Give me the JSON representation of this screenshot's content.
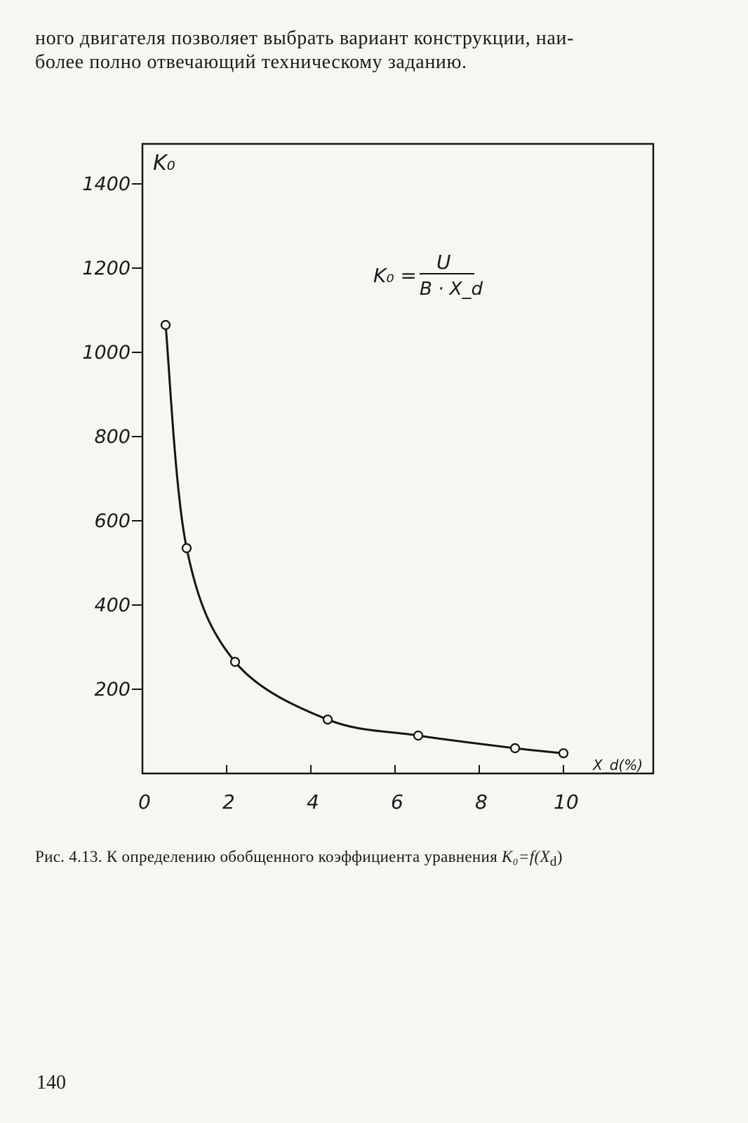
{
  "page": {
    "intro_line1": "ного двигателя позволяет выбрать вариант конструкции, наи-",
    "intro_line2": "более полно отвечающий техническому заданию.",
    "caption_prefix": "Рис. 4.13. К определению обобщенного коэффициента уравнения ",
    "caption_formula": "K₀=f(X",
    "caption_formula_sub": "d",
    "caption_formula_end": ")",
    "page_number": "140"
  },
  "chart_data": {
    "type": "line",
    "title": "",
    "ylabel": "K₀",
    "xlabel": "X_d(%)",
    "formula": {
      "lhs": "K₀ =",
      "numerator": "U",
      "denominator": "B · X_d"
    },
    "xlim": [
      0,
      12
    ],
    "ylim": [
      0,
      1500
    ],
    "x_ticks": [
      "0",
      "2",
      "4",
      "6",
      "8",
      "10"
    ],
    "x_tick_values": [
      0,
      2,
      4,
      6,
      8,
      10
    ],
    "y_ticks": [
      "200",
      "400",
      "600",
      "800",
      "1000",
      "1200",
      "1400"
    ],
    "y_tick_values": [
      200,
      400,
      600,
      800,
      1000,
      1200,
      1400
    ],
    "series": [
      {
        "x": [
          0.55,
          1.05,
          2.2,
          4.4,
          6.55,
          8.85,
          10.0
        ],
        "y": [
          1065,
          535,
          265,
          128,
          90,
          60,
          48
        ]
      }
    ],
    "grid": false,
    "stroke_color": "#141414"
  }
}
